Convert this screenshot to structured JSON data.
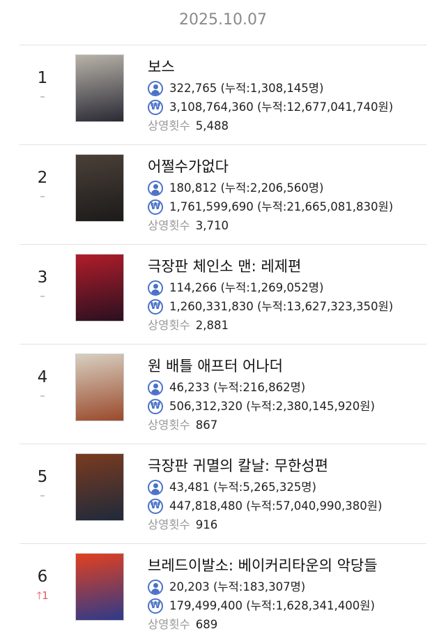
{
  "date": "2025.10.07",
  "colors": {
    "icon": "#4b72c8",
    "rank_up": "#e35b5b"
  },
  "movies": [
    {
      "rank": "1",
      "change": "–",
      "change_dir": "same",
      "title": "보스",
      "audience": "322,765 (누적:1,308,145명)",
      "revenue": "3,108,764,360 (누적:12,677,041,740원)",
      "screenings_label": "상영횟수",
      "screenings": "5,488",
      "poster_colors": [
        "#b8b2a8",
        "#2a2a35"
      ]
    },
    {
      "rank": "2",
      "change": "–",
      "change_dir": "same",
      "title": "어쩔수가없다",
      "audience": "180,812 (누적:2,206,560명)",
      "revenue": "1,761,599,690 (누적:21,665,081,830원)",
      "screenings_label": "상영횟수",
      "screenings": "3,710",
      "poster_colors": [
        "#4a4038",
        "#1c1a1a"
      ]
    },
    {
      "rank": "3",
      "change": "–",
      "change_dir": "same",
      "title": "극장판 체인소 맨: 레제편",
      "audience": "114,266 (누적:1,269,052명)",
      "revenue": "1,260,331,830 (누적:13,627,323,350원)",
      "screenings_label": "상영횟수",
      "screenings": "2,881",
      "poster_colors": [
        "#b01d2a",
        "#2a1020"
      ]
    },
    {
      "rank": "4",
      "change": "–",
      "change_dir": "same",
      "title": "원 배틀 애프터 어나더",
      "audience": "46,233 (누적:216,862명)",
      "revenue": "506,312,320 (누적:2,380,145,920원)",
      "screenings_label": "상영횟수",
      "screenings": "867",
      "poster_colors": [
        "#d8cfc0",
        "#9a4a2c"
      ]
    },
    {
      "rank": "5",
      "change": "–",
      "change_dir": "same",
      "title": "극장판 귀멸의 칼날: 무한성편",
      "audience": "43,481 (누적:5,265,325명)",
      "revenue": "447,818,480 (누적:57,040,990,380원)",
      "screenings_label": "상영횟수",
      "screenings": "916",
      "poster_colors": [
        "#7a3a20",
        "#1f2a3a"
      ]
    },
    {
      "rank": "6",
      "change": "1",
      "change_dir": "up",
      "title": "브레드이발소: 베이커리타운의 악당들",
      "audience": "20,203 (누적:183,307명)",
      "revenue": "179,499,400 (누적:1,628,341,400원)",
      "screenings_label": "상영횟수",
      "screenings": "689",
      "poster_colors": [
        "#e2401f",
        "#2e3a8a"
      ]
    }
  ]
}
